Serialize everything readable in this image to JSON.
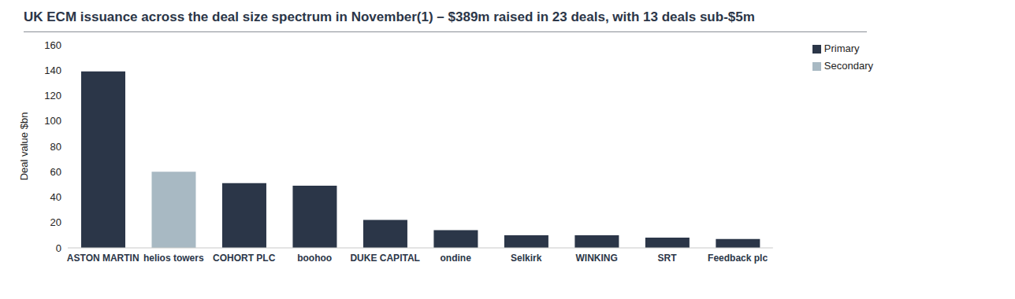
{
  "chart_data": {
    "type": "bar",
    "title": "UK ECM issuance across the deal size spectrum in November(1) – $389m raised in 23 deals, with 13 deals sub-$5m",
    "y_label": "Deal value $bn",
    "categories": [
      "ASTON MARTIN",
      "helios towers",
      "COHORT PLC",
      "boohoo",
      "DUKE CAPITAL",
      "ondine",
      "Selkirk",
      "WINKING",
      "SRT",
      "Feedback plc"
    ],
    "series": [
      {
        "name": "Primary",
        "color": "#2b3648",
        "values": [
          139,
          null,
          51,
          49,
          22,
          14,
          10,
          10,
          8,
          7
        ]
      },
      {
        "name": "Secondary",
        "color": "#a8b9c3",
        "values": [
          null,
          60,
          null,
          null,
          null,
          null,
          null,
          null,
          null,
          null
        ]
      }
    ],
    "stacked": true,
    "ylim": [
      0,
      160
    ],
    "yticks": [
      0,
      20,
      40,
      60,
      80,
      100,
      120,
      140,
      160
    ],
    "grid": false,
    "legend": "upper right"
  }
}
